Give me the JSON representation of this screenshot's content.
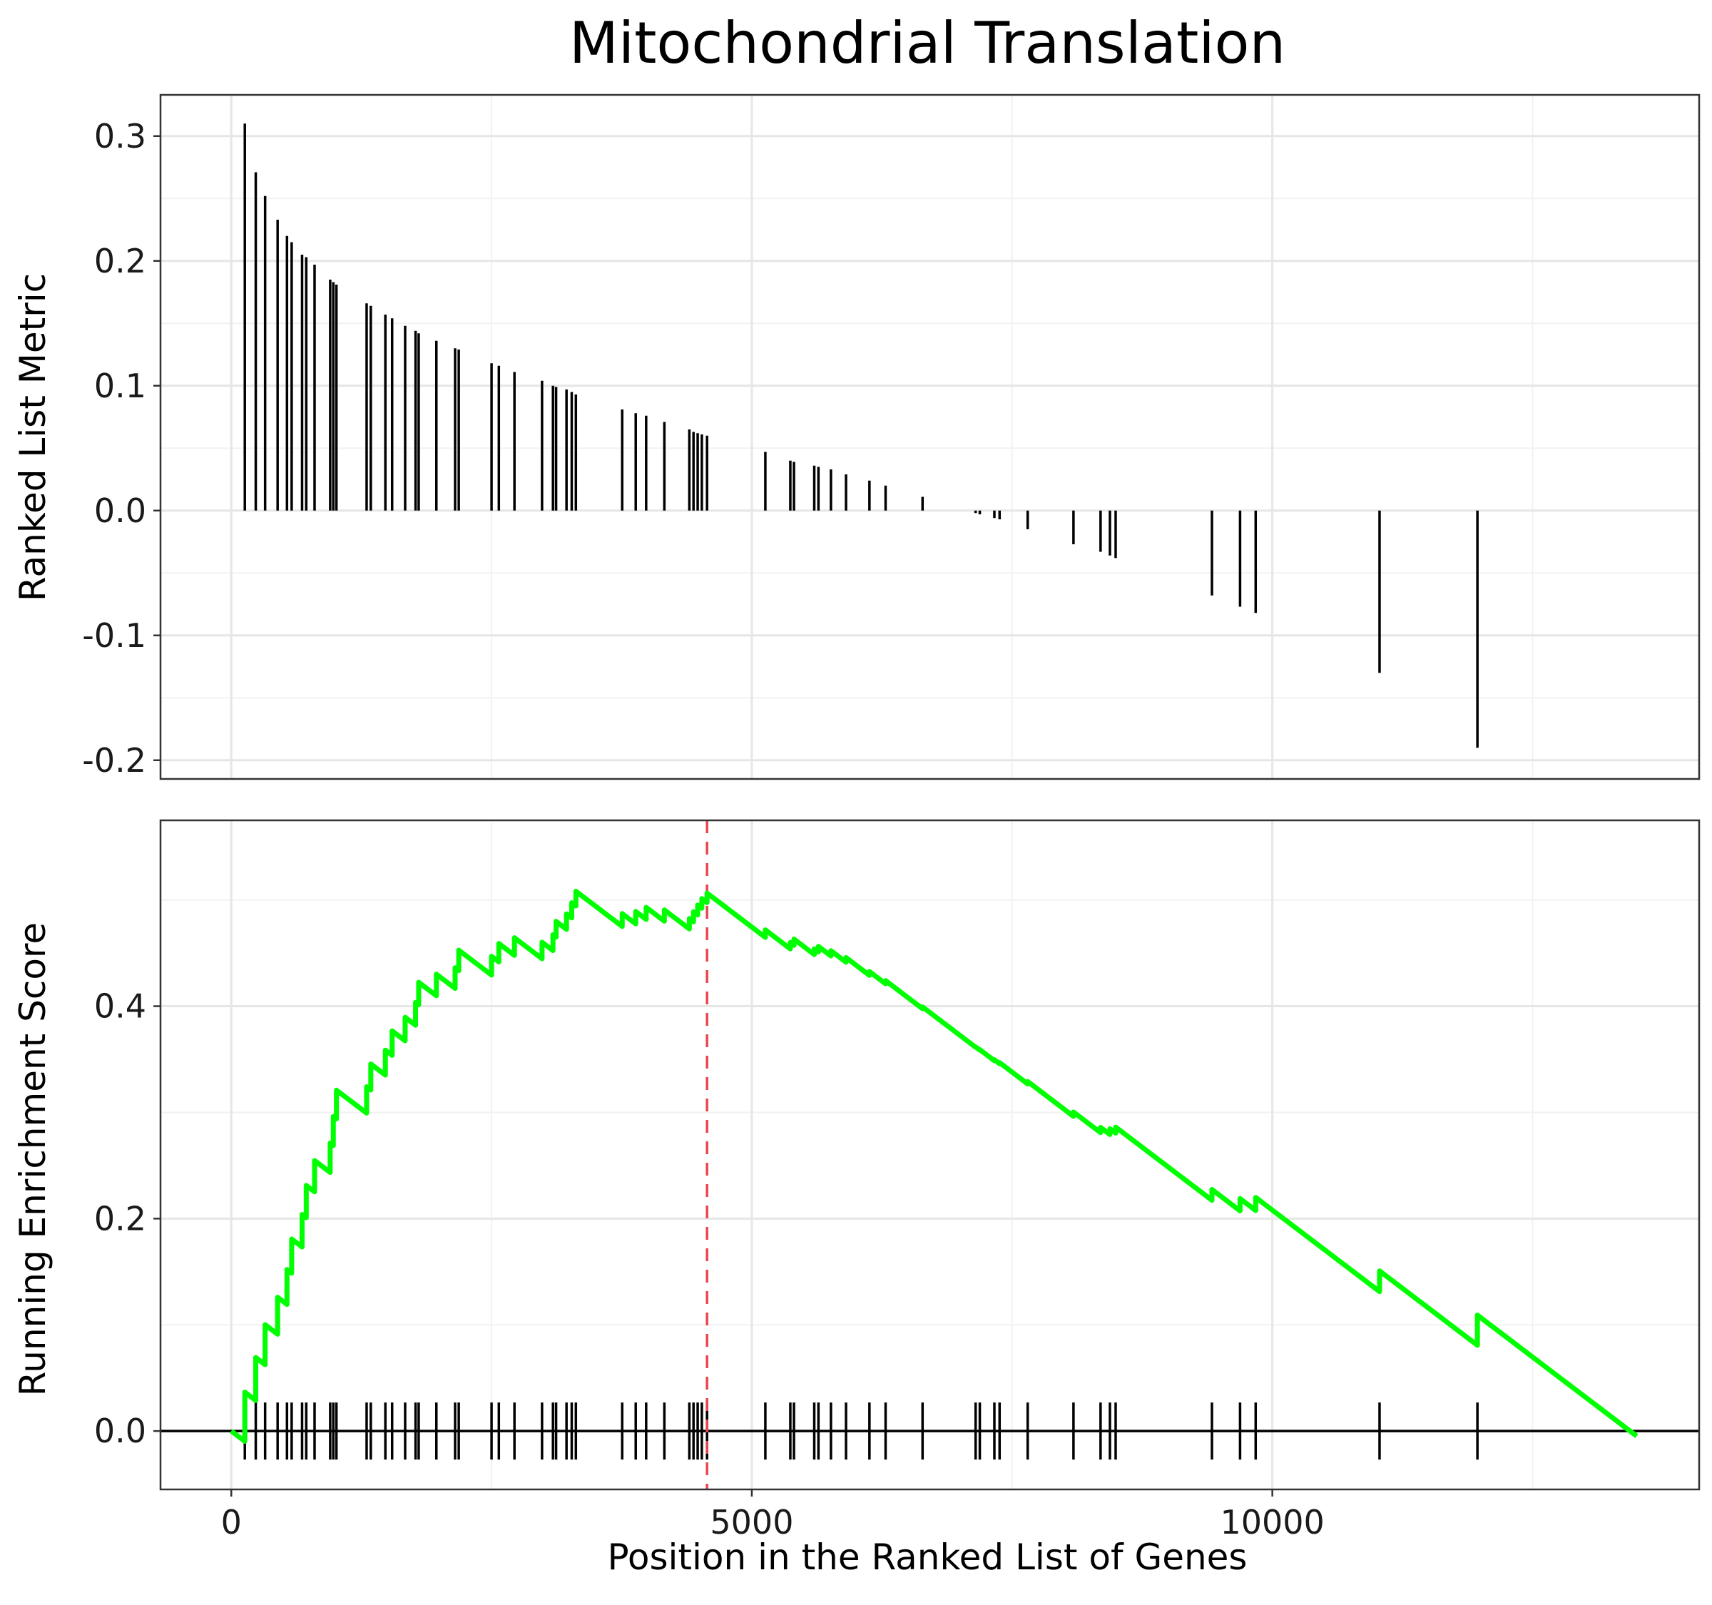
{
  "chart_data": {
    "title": "Mitochondrial Translation",
    "xlabel": "Position in the Ranked List of Genes",
    "x_ticks": [
      0,
      5000,
      10000
    ],
    "xlim": [
      -680,
      14100
    ],
    "colors": {
      "running_score": "#00ff00",
      "peak_marker": "#e8474d",
      "bars": "#000000"
    },
    "panels": [
      {
        "type": "bar",
        "name": "ranked-metric",
        "ylabel": "Ranked List Metric",
        "ylim": [
          -0.215,
          0.333
        ],
        "y_ticks": [
          -0.2,
          -0.1,
          0.0,
          0.1,
          0.2,
          0.3
        ],
        "y_tick_labels": [
          "-0.2",
          "-0.1",
          "0.0",
          "0.1",
          "0.2",
          "0.3"
        ],
        "grid": true,
        "bars": [
          {
            "x": 130,
            "y": 0.31
          },
          {
            "x": 235,
            "y": 0.271
          },
          {
            "x": 325,
            "y": 0.252
          },
          {
            "x": 445,
            "y": 0.233
          },
          {
            "x": 535,
            "y": 0.22
          },
          {
            "x": 580,
            "y": 0.215
          },
          {
            "x": 680,
            "y": 0.205
          },
          {
            "x": 720,
            "y": 0.203
          },
          {
            "x": 800,
            "y": 0.197
          },
          {
            "x": 950,
            "y": 0.185
          },
          {
            "x": 980,
            "y": 0.183
          },
          {
            "x": 1010,
            "y": 0.181
          },
          {
            "x": 1300,
            "y": 0.166
          },
          {
            "x": 1340,
            "y": 0.164
          },
          {
            "x": 1480,
            "y": 0.157
          },
          {
            "x": 1545,
            "y": 0.154
          },
          {
            "x": 1670,
            "y": 0.148
          },
          {
            "x": 1770,
            "y": 0.144
          },
          {
            "x": 1800,
            "y": 0.142
          },
          {
            "x": 1970,
            "y": 0.136
          },
          {
            "x": 2150,
            "y": 0.13
          },
          {
            "x": 2185,
            "y": 0.129
          },
          {
            "x": 2500,
            "y": 0.118
          },
          {
            "x": 2570,
            "y": 0.116
          },
          {
            "x": 2720,
            "y": 0.111
          },
          {
            "x": 2985,
            "y": 0.104
          },
          {
            "x": 3090,
            "y": 0.1
          },
          {
            "x": 3120,
            "y": 0.099
          },
          {
            "x": 3220,
            "y": 0.097
          },
          {
            "x": 3270,
            "y": 0.095
          },
          {
            "x": 3310,
            "y": 0.093
          },
          {
            "x": 3755,
            "y": 0.081
          },
          {
            "x": 3885,
            "y": 0.078
          },
          {
            "x": 3985,
            "y": 0.076
          },
          {
            "x": 4160,
            "y": 0.071
          },
          {
            "x": 4400,
            "y": 0.065
          },
          {
            "x": 4440,
            "y": 0.063
          },
          {
            "x": 4480,
            "y": 0.062
          },
          {
            "x": 4520,
            "y": 0.061
          },
          {
            "x": 4570,
            "y": 0.06
          },
          {
            "x": 5130,
            "y": 0.047
          },
          {
            "x": 5370,
            "y": 0.04
          },
          {
            "x": 5405,
            "y": 0.039
          },
          {
            "x": 5600,
            "y": 0.036
          },
          {
            "x": 5640,
            "y": 0.035
          },
          {
            "x": 5760,
            "y": 0.033
          },
          {
            "x": 5905,
            "y": 0.029
          },
          {
            "x": 6130,
            "y": 0.024
          },
          {
            "x": 6285,
            "y": 0.02
          },
          {
            "x": 6640,
            "y": 0.011
          },
          {
            "x": 7150,
            "y": -0.002
          },
          {
            "x": 7190,
            "y": -0.003
          },
          {
            "x": 7330,
            "y": -0.006
          },
          {
            "x": 7380,
            "y": -0.007
          },
          {
            "x": 7650,
            "y": -0.015
          },
          {
            "x": 8090,
            "y": -0.027
          },
          {
            "x": 8350,
            "y": -0.033
          },
          {
            "x": 8440,
            "y": -0.036
          },
          {
            "x": 8495,
            "y": -0.038
          },
          {
            "x": 9420,
            "y": -0.068
          },
          {
            "x": 9690,
            "y": -0.077
          },
          {
            "x": 9840,
            "y": -0.082
          },
          {
            "x": 11030,
            "y": -0.13
          },
          {
            "x": 11970,
            "y": -0.19
          }
        ]
      },
      {
        "type": "line",
        "name": "running-enrichment-score",
        "ylabel": "Running Enrichment Score",
        "ylim": [
          -0.055,
          0.575
        ],
        "y_ticks": [
          0.0,
          0.2,
          0.4
        ],
        "y_tick_labels": [
          "0.0",
          "0.2",
          "0.4"
        ],
        "grid": true,
        "peak_x": 4570,
        "line_end_x": 13500
      }
    ]
  }
}
